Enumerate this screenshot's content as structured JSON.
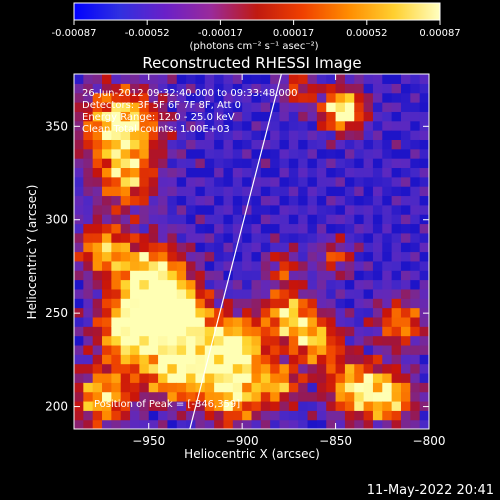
{
  "colorbar": {
    "ticks": [
      "-0.00087",
      "-0.00052",
      "-0.00017",
      "0.00017",
      "0.00052",
      "0.00087"
    ],
    "unit_label": "(photons cm⁻² s⁻¹ asec⁻²)",
    "colors": [
      "#0000ff",
      "#3030e0",
      "#6a20c8",
      "#9a2a9a",
      "#c01a10",
      "#f04000",
      "#ff8c00",
      "#ffd030",
      "#ffffc0"
    ]
  },
  "plot": {
    "title": "Reconstructed RHESSI Image",
    "xlabel": "Heliocentric X (arcsec)",
    "ylabel": "Heliocentric Y (arcsec)",
    "info_lines": [
      "26-Jun-2012 09:32:40.000 to 09:33:48.000",
      "Detectors: 3F 5F 6F 7F 8F, Att 0",
      "Energy Range: 12.0 - 25.0 keV",
      "Clean    Total counts: 1.00E+03"
    ],
    "peak_text": "Position of Peak = [-846,359]"
  },
  "footer": {
    "date": "11-May-2022 20:41"
  },
  "chart_data": {
    "type": "heatmap",
    "title": "Reconstructed RHESSI Image",
    "xlabel": "Heliocentric X (arcsec)",
    "ylabel": "Heliocentric Y (arcsec)",
    "xlim": [
      -990,
      -800
    ],
    "ylim": [
      188,
      378
    ],
    "x_ticks": [
      -950,
      -900,
      -850,
      -800
    ],
    "y_ticks": [
      200,
      250,
      300,
      350
    ],
    "x_tick_labels": [
      "−950",
      "−900",
      "−850",
      "−800"
    ],
    "y_tick_labels": [
      "200",
      "250",
      "300",
      "350"
    ],
    "colorbar_range": [
      -0.00087,
      0.00087
    ],
    "limb_line": {
      "x": [
        -928,
        -879
      ],
      "y": [
        188,
        378
      ]
    },
    "peak": {
      "x": -846,
      "y": 359
    },
    "hot_regions": [
      {
        "x": -965,
        "y": 350,
        "r": 22,
        "v": 0.95
      },
      {
        "x": -962,
        "y": 320,
        "r": 16,
        "v": 0.6
      },
      {
        "x": -975,
        "y": 285,
        "r": 14,
        "v": 0.7
      },
      {
        "x": -948,
        "y": 268,
        "r": 20,
        "v": 1.0
      },
      {
        "x": -932,
        "y": 250,
        "r": 14,
        "v": 0.85
      },
      {
        "x": -960,
        "y": 240,
        "r": 18,
        "v": 0.95
      },
      {
        "x": -935,
        "y": 220,
        "r": 18,
        "v": 0.9
      },
      {
        "x": -975,
        "y": 205,
        "r": 16,
        "v": 0.8
      },
      {
        "x": -905,
        "y": 232,
        "r": 18,
        "v": 1.0
      },
      {
        "x": -905,
        "y": 205,
        "r": 16,
        "v": 0.75
      },
      {
        "x": -875,
        "y": 250,
        "r": 14,
        "v": 0.75
      },
      {
        "x": -860,
        "y": 235,
        "r": 14,
        "v": 0.7
      },
      {
        "x": -840,
        "y": 210,
        "r": 16,
        "v": 0.8
      },
      {
        "x": -815,
        "y": 245,
        "r": 14,
        "v": 0.65
      },
      {
        "x": -820,
        "y": 205,
        "r": 14,
        "v": 0.75
      },
      {
        "x": -880,
        "y": 212,
        "r": 12,
        "v": 0.65
      },
      {
        "x": -846,
        "y": 359,
        "r": 12,
        "v": 1.0
      },
      {
        "x": -870,
        "y": 370,
        "r": 10,
        "v": 0.5
      },
      {
        "x": -878,
        "y": 275,
        "r": 10,
        "v": 0.45
      },
      {
        "x": -850,
        "y": 280,
        "r": 10,
        "v": 0.5
      }
    ]
  }
}
